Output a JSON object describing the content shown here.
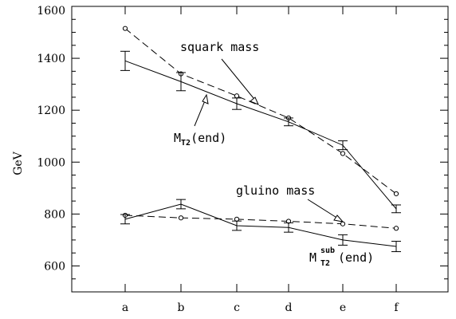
{
  "chart_data": {
    "type": "line",
    "ylabel": "GeV",
    "xlabel": "",
    "ylim": [
      500,
      1600
    ],
    "yticks": [
      600,
      800,
      1000,
      1200,
      1400,
      1600
    ],
    "categories": [
      "a",
      "b",
      "c",
      "d",
      "e",
      "f"
    ],
    "grid": false,
    "series": [
      {
        "name": "squark mass",
        "style": "dashed",
        "marker": "circle",
        "values": [
          1515,
          1340,
          1255,
          1170,
          1033,
          878
        ]
      },
      {
        "name": "M_T2(end)",
        "style": "solid",
        "marker": "errorbar",
        "values": [
          1390,
          1310,
          1225,
          1155,
          1065,
          820
        ],
        "errors": [
          37,
          35,
          22,
          15,
          17,
          15
        ]
      },
      {
        "name": "gluino mass",
        "style": "dashed",
        "marker": "circle",
        "values": [
          795,
          785,
          780,
          772,
          762,
          745
        ]
      },
      {
        "name": "M_T2^sub(end)",
        "style": "solid",
        "marker": "errorbar",
        "values": [
          780,
          838,
          755,
          748,
          700,
          675
        ],
        "errors": [
          18,
          18,
          18,
          18,
          20,
          20
        ]
      }
    ],
    "annotations": {
      "squark": "squark mass",
      "mt2_main": "M",
      "mt2_sub": "T2",
      "mt2_tail": "(end)",
      "gluino": "gluino mass",
      "mt2sub_main": "M",
      "mt2sub_sub": "T2",
      "mt2sub_sup": "sub",
      "mt2sub_tail": "(end)"
    }
  }
}
